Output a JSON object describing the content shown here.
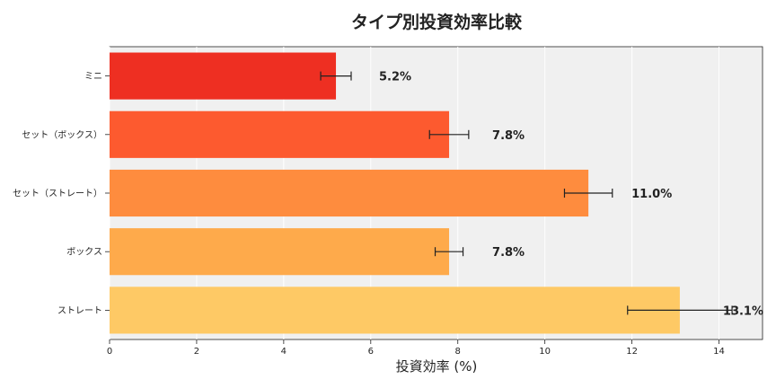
{
  "chart_data": {
    "type": "bar",
    "orientation": "horizontal",
    "title": "タイプ別投資効率比較",
    "xlabel": "投資効率 (%)",
    "ylabel": "",
    "xlim": [
      0,
      15
    ],
    "xticks": [
      0,
      2,
      4,
      6,
      8,
      10,
      12,
      14
    ],
    "grid": true,
    "categories": [
      "ミニ",
      "セット（ボックス）",
      "セット（ストレート）",
      "ボックス",
      "ストレート"
    ],
    "values": [
      5.2,
      7.8,
      11.0,
      7.8,
      13.1
    ],
    "errors": [
      0.35,
      0.45,
      0.55,
      0.32,
      1.2
    ],
    "data_labels": [
      "5.2%",
      "7.8%",
      "11.0%",
      "7.8%",
      "13.1%"
    ],
    "colors": [
      "#ee2f22",
      "#fd5a2f",
      "#fe8c3e",
      "#feaa4b",
      "#fec965"
    ]
  }
}
